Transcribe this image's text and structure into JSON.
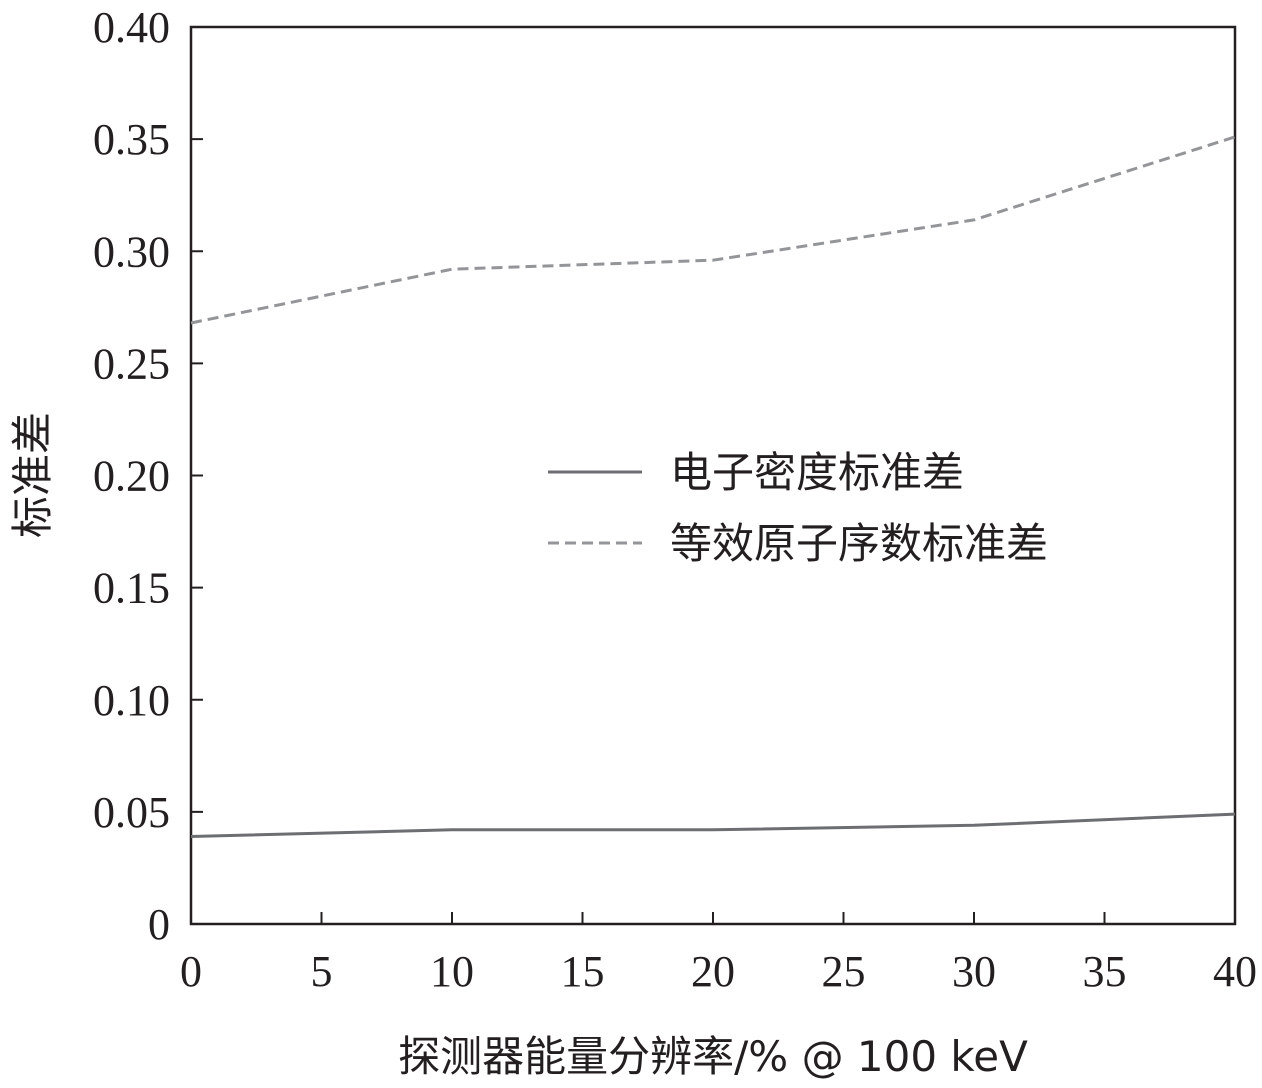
{
  "chart_data": {
    "type": "line",
    "xlabel": "探测器能量分辨率/% @ 100 keV",
    "ylabel": "标准差",
    "xlim": [
      0,
      40
    ],
    "ylim": [
      0,
      0.4
    ],
    "xticks": [
      0,
      5,
      10,
      15,
      20,
      25,
      30,
      35,
      40
    ],
    "xtick_labels": [
      "0",
      "5",
      "10",
      "15",
      "20",
      "25",
      "30",
      "35",
      "40"
    ],
    "yticks": [
      0,
      0.05,
      0.1,
      0.15,
      0.2,
      0.25,
      0.3,
      0.35,
      0.4
    ],
    "ytick_labels": [
      "0",
      "0.05",
      "0.10",
      "0.15",
      "0.20",
      "0.25",
      "0.30",
      "0.35",
      "0.40"
    ],
    "grid": false,
    "legend_position": "center-right",
    "x": [
      0,
      10,
      20,
      30,
      40
    ],
    "series": [
      {
        "name": "电子密度标准差",
        "style": "solid",
        "color": "#6d6e71",
        "values": [
          0.039,
          0.042,
          0.042,
          0.044,
          0.049
        ]
      },
      {
        "name": "等效原子序数标准差",
        "style": "dashed",
        "color": "#939598",
        "values": [
          0.268,
          0.292,
          0.296,
          0.314,
          0.351
        ]
      }
    ]
  }
}
